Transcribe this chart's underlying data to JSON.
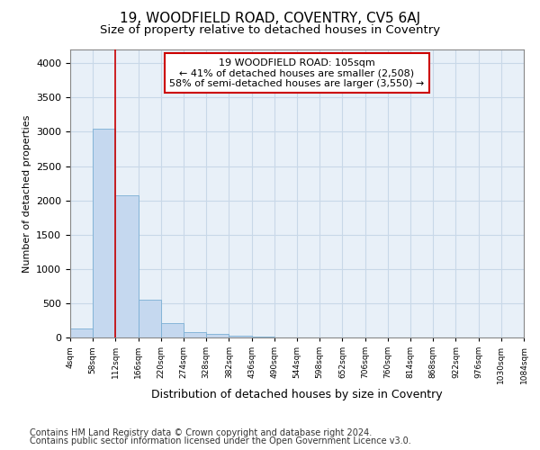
{
  "title": "19, WOODFIELD ROAD, COVENTRY, CV5 6AJ",
  "subtitle": "Size of property relative to detached houses in Coventry",
  "xlabel": "Distribution of detached houses by size in Coventry",
  "ylabel": "Number of detached properties",
  "bar_values": [
    130,
    3050,
    2080,
    550,
    210,
    80,
    55,
    30,
    10,
    5,
    3,
    2,
    1,
    1,
    0,
    0,
    0,
    0,
    0,
    0
  ],
  "bin_labels": [
    "4sqm",
    "58sqm",
    "112sqm",
    "166sqm",
    "220sqm",
    "274sqm",
    "328sqm",
    "382sqm",
    "436sqm",
    "490sqm",
    "544sqm",
    "598sqm",
    "652sqm",
    "706sqm",
    "760sqm",
    "814sqm",
    "868sqm",
    "922sqm",
    "976sqm",
    "1030sqm",
    "1084sqm"
  ],
  "bar_color": "#c5d8ef",
  "bar_edge_color": "#7aafd4",
  "vline_x": 2,
  "vline_color": "#cc0000",
  "annotation_text": "19 WOODFIELD ROAD: 105sqm\n← 41% of detached houses are smaller (2,508)\n58% of semi-detached houses are larger (3,550) →",
  "annotation_box_color": "#ffffff",
  "annotation_box_edge": "#cc0000",
  "ylim": [
    0,
    4200
  ],
  "yticks": [
    0,
    500,
    1000,
    1500,
    2000,
    2500,
    3000,
    3500,
    4000
  ],
  "grid_color": "#c8d8e8",
  "background_color": "#e8f0f8",
  "footer1": "Contains HM Land Registry data © Crown copyright and database right 2024.",
  "footer2": "Contains public sector information licensed under the Open Government Licence v3.0.",
  "title_fontsize": 11,
  "subtitle_fontsize": 9.5,
  "annot_fontsize": 8,
  "footer_fontsize": 7,
  "ylabel_fontsize": 8,
  "xlabel_fontsize": 9
}
